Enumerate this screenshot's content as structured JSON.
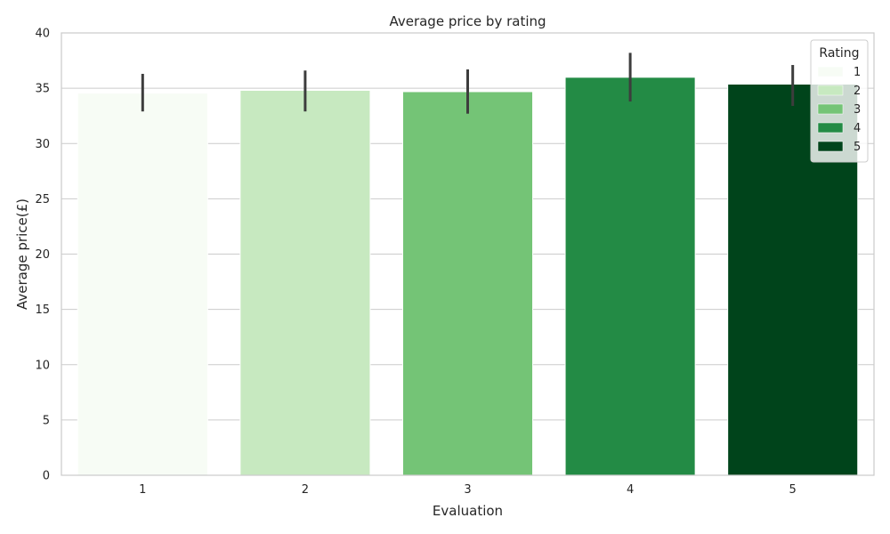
{
  "chart_data": {
    "type": "bar",
    "title": "Average price by rating",
    "xlabel": "Evaluation",
    "ylabel": "Average price(£)",
    "categories": [
      "1",
      "2",
      "3",
      "4",
      "5"
    ],
    "values": [
      34.56,
      34.81,
      34.69,
      35.99,
      35.37
    ],
    "error_low": [
      32.9,
      32.9,
      32.7,
      33.8,
      33.4
    ],
    "error_high": [
      36.3,
      36.6,
      36.7,
      38.2,
      37.1
    ],
    "colors": [
      "#f7fcf5",
      "#c7e9c0",
      "#74c476",
      "#238b45",
      "#00441b"
    ],
    "ylim": [
      0,
      40
    ],
    "yticks": [
      0,
      5,
      10,
      15,
      20,
      25,
      30,
      35,
      40
    ],
    "grid": "horizontal",
    "legend": {
      "title": "Rating",
      "placement": "top-right",
      "entries": [
        "1",
        "2",
        "3",
        "4",
        "5"
      ]
    }
  }
}
